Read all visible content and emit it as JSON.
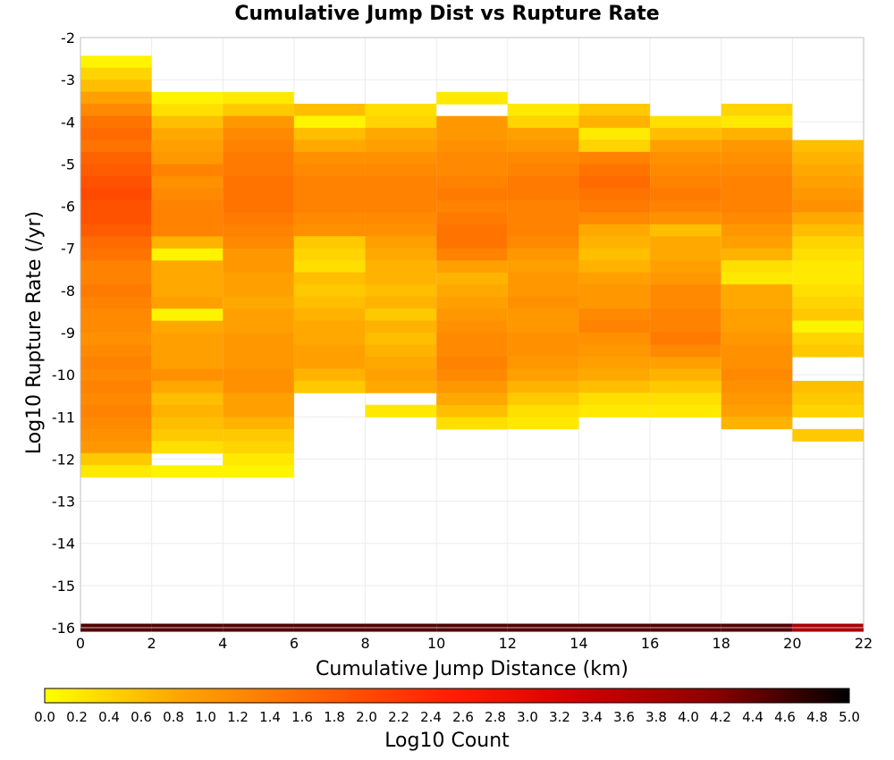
{
  "chart_data": {
    "type": "heatmap",
    "title": "Cumulative Jump Dist vs Rupture Rate",
    "xlabel": "Cumulative Jump Distance (km)",
    "ylabel": "Log10 Rupture Rate (/yr)",
    "xlim": [
      0,
      22
    ],
    "ylim": [
      -16,
      -2
    ],
    "x_ticks": [
      "0",
      "2",
      "4",
      "6",
      "8",
      "10",
      "12",
      "14",
      "16",
      "18",
      "20",
      "22"
    ],
    "y_ticks": [
      "-2",
      "-3",
      "-4",
      "-5",
      "-6",
      "-7",
      "-8",
      "-9",
      "-10",
      "-11",
      "-12",
      "-13",
      "-14",
      "-15",
      "-16"
    ],
    "grid": true,
    "x_bin_width": 2,
    "y_bin_height": 0.2857,
    "colorbar": {
      "label": "Log10 Count",
      "min": 0.0,
      "max": 5.0,
      "ticks": [
        "0.0",
        "0.2",
        "0.4",
        "0.6",
        "0.8",
        "1.0",
        "1.2",
        "1.4",
        "1.6",
        "1.8",
        "2.0",
        "2.2",
        "2.4",
        "2.6",
        "2.8",
        "3.0",
        "3.2",
        "3.4",
        "3.6",
        "3.8",
        "4.0",
        "4.2",
        "4.4",
        "4.6",
        "4.8",
        "5.0"
      ],
      "colors": [
        "#ffff00",
        "#ffa500",
        "#ff6600",
        "#ff2000",
        "#d00000",
        "#8b0000",
        "#000000"
      ]
    },
    "columns": [
      {
        "x": 0,
        "y_top": -2.43,
        "values": [
          0.1,
          0.4,
          0.6,
          0.9,
          1.2,
          1.5,
          1.6,
          1.5,
          1.7,
          1.8,
          1.9,
          2.0,
          1.9,
          1.9,
          1.8,
          1.6,
          1.5,
          1.3,
          1.3,
          1.4,
          1.3,
          1.2,
          1.2,
          1.1,
          1.2,
          1.3,
          1.2,
          1.3,
          1.2,
          1.3,
          1.2,
          1.1,
          1.0,
          0.5,
          0.2
        ]
      },
      {
        "x": 2,
        "y_top": -3.29,
        "values": [
          0.1,
          0.3,
          0.6,
          0.8,
          0.9,
          1.0,
          1.3,
          1.1,
          1.2,
          1.3,
          1.3,
          1.3,
          0.7,
          0.1,
          0.8,
          0.8,
          0.8,
          0.9,
          0.1,
          0.8,
          0.9,
          0.9,
          0.9,
          1.1,
          0.8,
          0.6,
          0.7,
          0.6,
          0.5,
          0.3,
          -1,
          0.1
        ]
      },
      {
        "x": 4,
        "y_top": -3.29,
        "values": [
          0.2,
          0.5,
          1.0,
          1.2,
          1.3,
          1.4,
          1.4,
          1.5,
          1.5,
          1.5,
          1.4,
          1.3,
          1.2,
          1.0,
          1.0,
          0.9,
          0.9,
          0.8,
          0.9,
          0.9,
          1.0,
          1.0,
          1.0,
          1.1,
          1.1,
          0.9,
          0.9,
          0.7,
          0.5,
          0.4,
          0.2,
          0.1
        ]
      },
      {
        "x": 6,
        "y_top": -3.57,
        "values": [
          0.6,
          0.1,
          0.6,
          0.8,
          1.1,
          1.2,
          1.3,
          1.3,
          1.3,
          1.2,
          1.1,
          0.5,
          0.4,
          0.3,
          0.6,
          0.5,
          0.6,
          0.7,
          0.8,
          0.8,
          0.9,
          0.9,
          0.7,
          0.5
        ]
      },
      {
        "x": 8,
        "y_top": -3.57,
        "values": [
          0.3,
          0.4,
          0.8,
          0.9,
          1.1,
          1.2,
          1.3,
          1.3,
          1.3,
          1.2,
          1.1,
          0.9,
          0.8,
          0.7,
          0.7,
          0.6,
          0.7,
          0.5,
          0.7,
          0.6,
          0.7,
          0.8,
          0.9,
          0.8,
          -1,
          0.2
        ]
      },
      {
        "x": 10,
        "y_top": -3.29,
        "values": [
          0.2,
          -1,
          1.0,
          1.0,
          1.1,
          1.2,
          1.2,
          1.3,
          1.4,
          1.3,
          1.4,
          1.5,
          1.5,
          1.3,
          0.9,
          0.7,
          0.8,
          0.9,
          1.0,
          1.1,
          1.2,
          1.2,
          1.3,
          1.2,
          1.0,
          0.8,
          0.6,
          0.3
        ]
      },
      {
        "x": 12,
        "y_top": -3.57,
        "values": [
          0.2,
          0.4,
          0.9,
          1.0,
          1.2,
          1.3,
          1.4,
          1.4,
          1.3,
          1.3,
          1.3,
          1.2,
          1.0,
          0.9,
          1.0,
          1.0,
          1.1,
          1.0,
          1.0,
          1.1,
          1.1,
          1.0,
          0.9,
          0.7,
          0.5,
          0.3,
          0.2
        ]
      },
      {
        "x": 14,
        "y_top": -3.57,
        "values": [
          0.5,
          0.7,
          0.2,
          0.4,
          1.3,
          1.5,
          1.6,
          1.5,
          1.4,
          1.2,
          0.8,
          0.7,
          0.6,
          0.7,
          0.9,
          1.0,
          1.0,
          1.2,
          1.3,
          1.1,
          1.0,
          0.9,
          0.8,
          0.6,
          0.3,
          0.2
        ]
      },
      {
        "x": 16,
        "y_top": -3.86,
        "values": [
          0.3,
          0.6,
          0.9,
          1.1,
          1.2,
          1.3,
          1.4,
          1.3,
          1.1,
          0.6,
          0.8,
          0.8,
          0.9,
          1.0,
          1.2,
          1.2,
          1.3,
          1.3,
          1.4,
          1.2,
          0.9,
          0.7,
          0.5,
          0.3,
          0.2
        ]
      },
      {
        "x": 18,
        "y_top": -3.57,
        "values": [
          0.4,
          0.2,
          0.7,
          1.0,
          1.1,
          1.2,
          1.3,
          1.3,
          1.3,
          1.2,
          1.0,
          0.9,
          0.7,
          0.3,
          0.2,
          0.8,
          0.8,
          0.9,
          0.9,
          1.0,
          1.1,
          1.1,
          1.2,
          1.1,
          1.0,
          0.9,
          0.7
        ]
      },
      {
        "x": 20,
        "y_top": -4.43,
        "values": [
          0.6,
          0.7,
          0.8,
          0.9,
          1.0,
          1.1,
          0.8,
          0.6,
          0.4,
          0.3,
          0.2,
          0.2,
          0.3,
          0.4,
          0.5,
          0.1,
          0.4,
          0.5,
          -1,
          -1,
          0.6,
          0.5,
          0.4,
          -1,
          0.5
        ]
      }
    ],
    "bottom_row": {
      "y": -16,
      "values": [
        4.5,
        4.5,
        4.5,
        4.5,
        4.5,
        4.5,
        4.5,
        4.5,
        4.5,
        4.5,
        3.8
      ]
    }
  }
}
